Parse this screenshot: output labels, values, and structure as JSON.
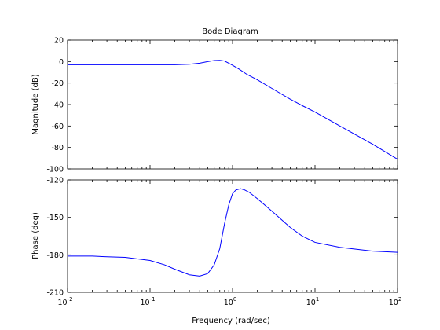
{
  "chart_data": {
    "type": "line",
    "title": "Bode Diagram",
    "xlabel": "Frequency  (rad/sec)",
    "xscale": "log",
    "xlim": [
      0.01,
      100
    ],
    "x_ticks": [
      0.01,
      0.1,
      1,
      10,
      100
    ],
    "x_tick_labels": [
      {
        "base": "10",
        "exp": "-2"
      },
      {
        "base": "10",
        "exp": "-1"
      },
      {
        "base": "10",
        "exp": "0"
      },
      {
        "base": "10",
        "exp": "1"
      },
      {
        "base": "10",
        "exp": "2"
      }
    ],
    "grid": false,
    "line_color": "#0000ff",
    "axes_color": "#000000",
    "panels": [
      {
        "name": "magnitude",
        "ylabel": "Magnitude (dB)",
        "ylim": [
          -100,
          20
        ],
        "yticks": [
          -100,
          -80,
          -60,
          -40,
          -20,
          0,
          20
        ],
        "ytick_labels": [
          "-100",
          "-80",
          "-60",
          "-40",
          "-20",
          "0",
          "20"
        ],
        "series": [
          {
            "x": [
              0.01,
              0.02,
              0.05,
              0.1,
              0.15,
              0.2,
              0.3,
              0.4,
              0.5,
              0.6,
              0.7,
              0.8,
              0.9,
              1.0,
              1.2,
              1.5,
              2,
              3,
              5,
              7,
              10,
              20,
              50,
              100
            ],
            "y": [
              -3,
              -3,
              -3,
              -3,
              -3,
              -3,
              -2.5,
              -1.5,
              0,
              1,
              1.2,
              0.5,
              -1.5,
              -3.5,
              -7,
              -12,
              -17,
              -25,
              -35,
              -41,
              -47,
              -60,
              -77,
              -91
            ]
          }
        ]
      },
      {
        "name": "phase",
        "ylabel": "Phase (deg)",
        "ylim": [
          -210,
          -120
        ],
        "yticks": [
          -210,
          -180,
          -150,
          -120
        ],
        "ytick_labels": [
          "-210",
          "-180",
          "-150",
          "-120"
        ],
        "series": [
          {
            "x": [
              0.01,
              0.02,
              0.03,
              0.05,
              0.1,
              0.15,
              0.2,
              0.3,
              0.4,
              0.5,
              0.6,
              0.7,
              0.8,
              0.9,
              1.0,
              1.1,
              1.25,
              1.4,
              1.6,
              2,
              3,
              5,
              7,
              10,
              20,
              50,
              100
            ],
            "y": [
              -181,
              -181,
              -181.5,
              -182,
              -184.5,
              -188,
              -191.5,
              -196,
              -197,
              -195,
              -188,
              -175,
              -155,
              -140,
              -131,
              -128,
              -127,
              -128,
              -130,
              -135,
              -145,
              -158,
              -165,
              -170,
              -174,
              -177,
              -178
            ]
          }
        ]
      }
    ]
  }
}
